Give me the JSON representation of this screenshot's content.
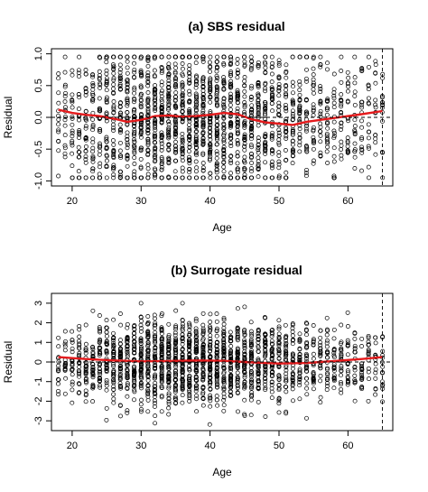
{
  "chart_data": [
    {
      "type": "scatter",
      "title": "(a) SBS residual",
      "xlabel": "Age",
      "ylabel": "Residual",
      "xlim": [
        17,
        66.5
      ],
      "ylim": [
        -1.08,
        1.08
      ],
      "xticks": [
        "20",
        "30",
        "40",
        "50",
        "60"
      ],
      "xtick_values": [
        20,
        30,
        40,
        50,
        60
      ],
      "yticks": [
        "-1.0",
        "-0.5",
        "0.0",
        "0.5",
        "1.0"
      ],
      "ytick_values": [
        -1.0,
        -0.5,
        0.0,
        0.5,
        1.0
      ],
      "hline": 0,
      "vline": 65,
      "x_range": [
        18,
        65
      ],
      "point_spread": [
        {
          "x": 18,
          "s": 0.55
        },
        {
          "x": 25,
          "s": 0.6
        },
        {
          "x": 35,
          "s": 0.58
        },
        {
          "x": 45,
          "s": 0.58
        },
        {
          "x": 55,
          "s": 0.55
        },
        {
          "x": 65,
          "s": 0.55
        }
      ],
      "point_clip": [
        -0.95,
        0.95
      ],
      "point_density": [
        {
          "x": 18,
          "n": 14
        },
        {
          "x": 22,
          "n": 28
        },
        {
          "x": 27,
          "n": 45
        },
        {
          "x": 33,
          "n": 58
        },
        {
          "x": 39,
          "n": 60
        },
        {
          "x": 45,
          "n": 50
        },
        {
          "x": 50,
          "n": 36
        },
        {
          "x": 55,
          "n": 26
        },
        {
          "x": 60,
          "n": 20
        },
        {
          "x": 65,
          "n": 14
        }
      ],
      "series": [
        {
          "x": [
            18,
            20,
            22,
            24,
            26,
            28,
            30,
            32,
            34,
            36,
            38,
            40,
            42,
            44,
            46,
            48,
            50,
            52,
            54,
            56,
            58,
            60,
            62,
            65
          ],
          "y": [
            0.12,
            0.07,
            0.04,
            0.02,
            -0.02,
            -0.07,
            -0.04,
            0.02,
            0.03,
            0.01,
            0.02,
            0.04,
            0.07,
            0.05,
            -0.03,
            -0.08,
            -0.1,
            -0.12,
            -0.07,
            -0.04,
            -0.01,
            0.02,
            0.05,
            0.1
          ],
          "color": "#e41a1c"
        }
      ],
      "point_color": "#000000"
    },
    {
      "type": "scatter",
      "title": "(b) Surrogate residual",
      "xlabel": "Age",
      "ylabel": "Residual",
      "xlim": [
        17,
        66.5
      ],
      "ylim": [
        -3.5,
        3.5
      ],
      "xticks": [
        "20",
        "30",
        "40",
        "50",
        "60"
      ],
      "xtick_values": [
        20,
        30,
        40,
        50,
        60
      ],
      "yticks": [
        "-3",
        "-2",
        "-1",
        "0",
        "1",
        "2",
        "3"
      ],
      "ytick_values": [
        -3,
        -2,
        -1,
        0,
        1,
        2,
        3
      ],
      "hline": 0,
      "vline": 65,
      "x_range": [
        18,
        65
      ],
      "point_spread": [
        {
          "x": 18,
          "s": 0.9
        },
        {
          "x": 25,
          "s": 1.05
        },
        {
          "x": 35,
          "s": 1.15
        },
        {
          "x": 45,
          "s": 1.05
        },
        {
          "x": 55,
          "s": 0.95
        },
        {
          "x": 65,
          "s": 0.85
        }
      ],
      "point_clip": [
        -3.3,
        3.0
      ],
      "point_density": [
        {
          "x": 18,
          "n": 14
        },
        {
          "x": 22,
          "n": 28
        },
        {
          "x": 27,
          "n": 45
        },
        {
          "x": 33,
          "n": 58
        },
        {
          "x": 39,
          "n": 60
        },
        {
          "x": 45,
          "n": 50
        },
        {
          "x": 50,
          "n": 36
        },
        {
          "x": 55,
          "n": 26
        },
        {
          "x": 60,
          "n": 20
        },
        {
          "x": 65,
          "n": 14
        }
      ],
      "series": [
        {
          "x": [
            18,
            22,
            26,
            30,
            34,
            38,
            42,
            46,
            50,
            54,
            58,
            62,
            65
          ],
          "y": [
            0.25,
            0.15,
            0.08,
            0.03,
            0.05,
            0.08,
            0.06,
            -0.02,
            -0.08,
            -0.05,
            0.05,
            0.15,
            0.25
          ],
          "color": "#e41a1c"
        }
      ],
      "point_color": "#000000"
    }
  ]
}
